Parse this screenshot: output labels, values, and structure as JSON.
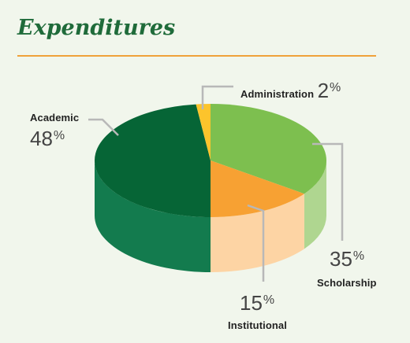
{
  "title": "Expenditures",
  "colors": {
    "title": "#1f6b3a",
    "rule": "#f0a23a",
    "background": "#f1f6ec"
  },
  "chart_data": {
    "type": "pie",
    "title": "Expenditures",
    "is_3d": true,
    "slices": [
      {
        "label": "Scholarship",
        "value": 35,
        "pct_text": "35",
        "color_top": "#7dbf4f",
        "color_side": "#afd690"
      },
      {
        "label": "Institutional",
        "value": 15,
        "pct_text": "15",
        "color_top": "#f7a133",
        "color_side": "#fdd4a4"
      },
      {
        "label": "Academic",
        "value": 48,
        "pct_text": "48",
        "color_top": "#066536",
        "color_side": "#137b4e"
      },
      {
        "label": "Administration",
        "value": 2,
        "pct_text": "2",
        "color_top": "#fcc42c",
        "color_side": "#fddc7a"
      }
    ],
    "percent_sign": "%"
  }
}
